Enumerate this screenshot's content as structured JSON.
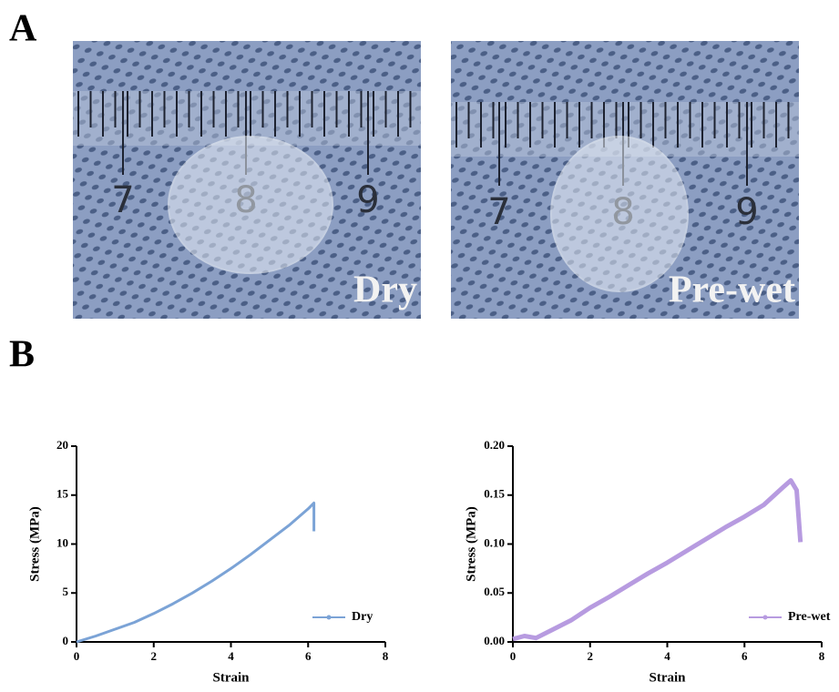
{
  "panel_a": {
    "label": "A",
    "photos": [
      {
        "ruler_labels": [
          "7",
          "8",
          "9"
        ],
        "caption": "Dry"
      },
      {
        "ruler_labels": [
          "7",
          "8",
          "9"
        ],
        "caption": "Pre-wet"
      }
    ]
  },
  "panel_b": {
    "label": "B"
  },
  "chart_data": [
    {
      "type": "line",
      "xlabel": "Strain",
      "ylabel": "Stress (MPa)",
      "x": [
        0,
        0.5,
        1,
        1.5,
        2,
        2.5,
        3,
        3.5,
        4,
        4.5,
        5,
        5.5,
        6,
        6.15,
        6.15
      ],
      "series": [
        {
          "name": "Dry",
          "color": "#7ba3d6",
          "values": [
            0,
            0.6,
            1.3,
            2.0,
            2.9,
            3.9,
            5.0,
            6.2,
            7.5,
            8.9,
            10.4,
            11.9,
            13.6,
            14.2,
            11.3
          ]
        }
      ],
      "xlim": [
        0,
        8
      ],
      "ylim": [
        0,
        20
      ],
      "xticks": [
        0,
        2,
        4,
        6,
        8
      ],
      "yticks": [
        0,
        5,
        10,
        15,
        20
      ],
      "legend": "lower right"
    },
    {
      "type": "line",
      "xlabel": "Strain",
      "ylabel": "Stress (MPa)",
      "x": [
        0,
        0.3,
        0.6,
        1,
        1.5,
        2,
        2.5,
        3,
        3.5,
        4,
        4.5,
        5,
        5.5,
        6,
        6.5,
        7,
        7.2,
        7.35,
        7.45
      ],
      "series": [
        {
          "name": "Pre-wet",
          "color": "#b79be0",
          "values": [
            0.003,
            0.006,
            0.004,
            0.012,
            0.022,
            0.035,
            0.046,
            0.058,
            0.07,
            0.081,
            0.093,
            0.105,
            0.117,
            0.128,
            0.14,
            0.158,
            0.165,
            0.155,
            0.102
          ]
        }
      ],
      "xlim": [
        0,
        8
      ],
      "ylim": [
        0,
        0.2
      ],
      "xticks": [
        0,
        2,
        4,
        6,
        8
      ],
      "yticks": [
        {
          "value": 0,
          "label": "0.00"
        },
        0.05,
        {
          "value": 0.1,
          "label": "0.10"
        },
        {
          "value": 0.15,
          "label": "0.15"
        },
        {
          "value": 0.2,
          "label": "0.20"
        }
      ],
      "legend": "lower right"
    }
  ]
}
